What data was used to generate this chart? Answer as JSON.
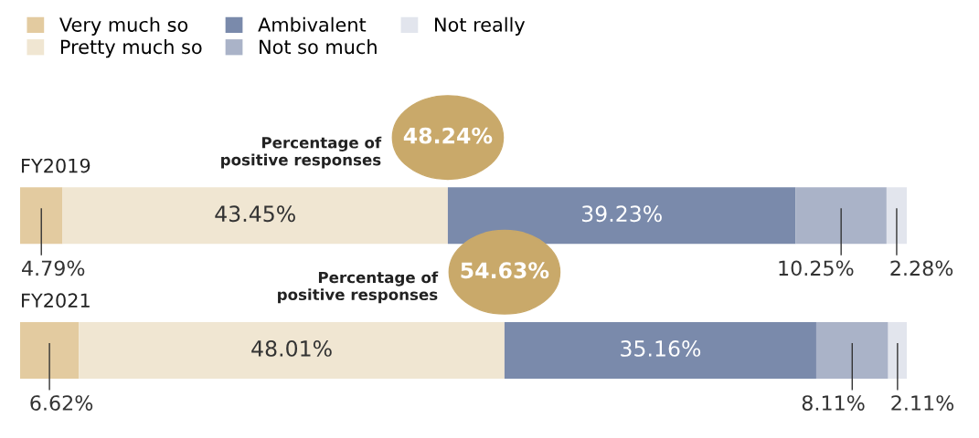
{
  "chart_data": {
    "type": "bar",
    "orientation": "horizontal",
    "stacked": true,
    "categories": [
      "FY2019",
      "FY2021"
    ],
    "xlim": [
      0,
      100
    ],
    "legend": "top left",
    "data_labels": true,
    "series": [
      {
        "name": "Very much so",
        "color": "#e3cba0",
        "values": [
          4.79,
          6.62
        ],
        "value_labels": [
          "4.79%",
          "6.62%"
        ]
      },
      {
        "name": "Pretty much so",
        "color": "#f0e6d2",
        "values": [
          43.45,
          48.01
        ],
        "value_labels": [
          "43.45%",
          "48.01%"
        ]
      },
      {
        "name": "Ambivalent",
        "color": "#7a8aab",
        "values": [
          39.23,
          35.16
        ],
        "value_labels": [
          "39.23%",
          "35.16%"
        ]
      },
      {
        "name": "Not so much",
        "color": "#aab3c8",
        "values": [
          10.25,
          8.11
        ],
        "value_labels": [
          "10.25%",
          "8.11%"
        ]
      },
      {
        "name": "Not really",
        "color": "#e2e5ed",
        "values": [
          2.28,
          2.11
        ],
        "value_labels": [
          "2.28%",
          "2.11%"
        ]
      }
    ],
    "annotations": [
      "Percentage of\npositive responses",
      "48.24%",
      "Percentage of\npositive responses",
      "54.63%"
    ]
  }
}
